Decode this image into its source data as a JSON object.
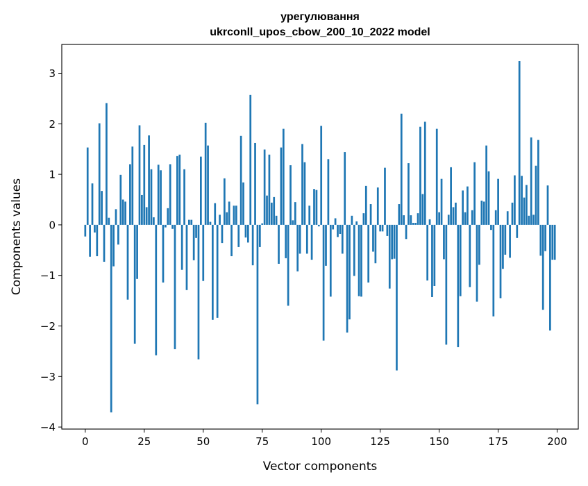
{
  "chart_data": {
    "type": "bar",
    "title_line1": "урегулювання",
    "title_line2": "ukrconll_upos_cbow_200_10_2022 model",
    "xlabel": "Vector components",
    "ylabel": "Components values",
    "xlim": [
      -9.95,
      208.95
    ],
    "ylim": [
      -4.04,
      3.57
    ],
    "xticks": [
      0,
      25,
      50,
      75,
      100,
      125,
      150,
      175,
      200
    ],
    "xtick_labels": [
      "0",
      "25",
      "50",
      "75",
      "100",
      "125",
      "150",
      "175",
      "200"
    ],
    "yticks": [
      -4,
      -3,
      -2,
      -1,
      0,
      1,
      2,
      3
    ],
    "ytick_labels": [
      "−4",
      "−3",
      "−2",
      "−1",
      "0",
      "1",
      "2",
      "3"
    ],
    "grid": false,
    "bar_color": "#1f77b4",
    "values": [
      -0.23,
      1.53,
      -0.63,
      0.82,
      -0.15,
      -0.62,
      2.01,
      0.67,
      -0.73,
      2.41,
      0.14,
      -3.71,
      -0.82,
      0.31,
      -0.39,
      0.99,
      0.5,
      0.46,
      -1.48,
      1.2,
      1.55,
      -2.35,
      -1.07,
      1.97,
      0.59,
      1.58,
      0.35,
      1.77,
      1.1,
      0.15,
      -2.58,
      1.19,
      1.08,
      -1.14,
      -0.05,
      0.33,
      1.2,
      -0.08,
      -2.46,
      1.36,
      1.39,
      -0.89,
      1.1,
      -1.29,
      0.1,
      0.1,
      -0.7,
      -0.26,
      -2.66,
      1.35,
      -1.11,
      2.02,
      1.57,
      0.06,
      -1.88,
      0.43,
      -1.84,
      0.2,
      -0.36,
      0.92,
      0.25,
      0.46,
      -0.62,
      0.38,
      0.38,
      -0.44,
      1.76,
      0.84,
      -0.25,
      -0.35,
      2.57,
      -0.8,
      1.62,
      -3.55,
      -0.44,
      0.03,
      1.49,
      0.58,
      1.39,
      0.44,
      0.55,
      0.18,
      -0.77,
      1.53,
      1.9,
      -0.66,
      -1.6,
      1.18,
      0.09,
      0.45,
      -0.92,
      -0.57,
      1.6,
      1.24,
      -0.57,
      0.38,
      -0.69,
      0.71,
      0.69,
      -0.03,
      1.96,
      -2.29,
      -0.81,
      1.3,
      -1.42,
      -0.09,
      0.13,
      -0.24,
      -0.18,
      -0.57,
      1.44,
      -2.13,
      -1.87,
      0.18,
      -1.01,
      0.07,
      -1.41,
      -1.42,
      0.23,
      0.77,
      -1.14,
      0.41,
      -0.53,
      -0.76,
      0.74,
      -0.13,
      -0.13,
      1.13,
      -0.22,
      -1.26,
      -0.68,
      -0.67,
      -2.88,
      0.41,
      2.2,
      0.19,
      -0.28,
      1.22,
      0.19,
      0.04,
      0.04,
      0.23,
      1.94,
      0.61,
      2.04,
      -1.1,
      0.11,
      -1.43,
      -1.21,
      1.9,
      0.25,
      0.91,
      -0.68,
      -2.37,
      0.2,
      1.14,
      0.35,
      0.44,
      -2.42,
      -1.41,
      0.68,
      0.25,
      0.76,
      -1.23,
      0.29,
      1.24,
      -1.52,
      -0.79,
      0.48,
      0.46,
      1.57,
      1.06,
      -0.1,
      -1.81,
      0.29,
      0.91,
      -1.45,
      -0.87,
      -0.59,
      0.27,
      -0.65,
      0.44,
      0.98,
      -0.26,
      3.24,
      0.97,
      0.54,
      0.79,
      0.18,
      1.73,
      0.2,
      1.17,
      1.68,
      -0.61,
      -1.68,
      -0.52,
      0.78,
      -2.09,
      -0.69,
      -0.69
    ]
  }
}
